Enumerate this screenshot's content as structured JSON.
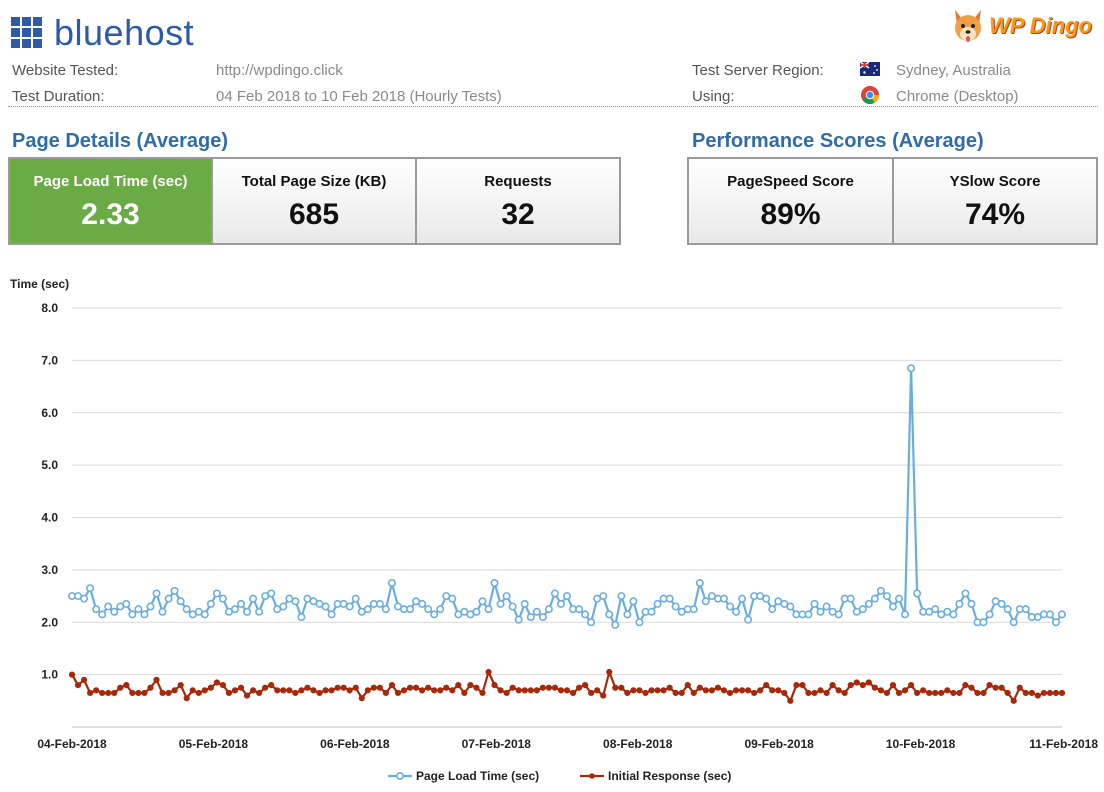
{
  "header": {
    "brand": "bluehost",
    "partner_logo_text": "WP Dingo",
    "website_label": "Website Tested:",
    "website_value": "http://wpdingo.click",
    "duration_label": "Test Duration:",
    "duration_value": "04 Feb 2018 to 10 Feb 2018 (Hourly Tests)",
    "region_label": "Test Server Region:",
    "region_value": "Sydney, Australia",
    "using_label": "Using:",
    "using_value": "Chrome (Desktop)"
  },
  "page_details": {
    "title": "Page Details (Average)",
    "cards": [
      {
        "label": "Page Load Time (sec)",
        "value": "2.33"
      },
      {
        "label": "Total Page Size (KB)",
        "value": "685"
      },
      {
        "label": "Requests",
        "value": "32"
      }
    ]
  },
  "performance": {
    "title": "Performance Scores (Average)",
    "cards": [
      {
        "label": "PageSpeed Score",
        "value": "89%"
      },
      {
        "label": "YSlow Score",
        "value": "74%"
      }
    ]
  },
  "colors": {
    "brand_blue": "#2f5aa8",
    "title_blue": "#2f6ca8",
    "green": "#6aab46",
    "series_load": "#6aaee0",
    "series_response": "#a8280a"
  },
  "chart_data": {
    "type": "line",
    "ylabel": "Time (sec)",
    "ylim": [
      0,
      8
    ],
    "yticks": [
      "8.0",
      "7.0",
      "6.0",
      "5.0",
      "4.0",
      "3.0",
      "2.0",
      "1.0"
    ],
    "xlim": [
      "04-Feb-2018",
      "11-Feb-2018"
    ],
    "xticks": [
      "04-Feb-2018",
      "05-Feb-2018",
      "06-Feb-2018",
      "07-Feb-2018",
      "08-Feb-2018",
      "09-Feb-2018",
      "10-Feb-2018",
      "11-Feb-2018"
    ],
    "grid": "horizontal",
    "legend": "bottom",
    "series": [
      {
        "name": "Page Load Time (sec)",
        "values": [
          2.5,
          2.5,
          2.45,
          2.65,
          2.25,
          2.15,
          2.3,
          2.2,
          2.3,
          2.35,
          2.15,
          2.25,
          2.15,
          2.3,
          2.55,
          2.2,
          2.45,
          2.6,
          2.4,
          2.25,
          2.15,
          2.2,
          2.15,
          2.35,
          2.55,
          2.45,
          2.2,
          2.25,
          2.35,
          2.2,
          2.45,
          2.2,
          2.5,
          2.55,
          2.25,
          2.3,
          2.45,
          2.4,
          2.1,
          2.45,
          2.4,
          2.35,
          2.3,
          2.15,
          2.35,
          2.35,
          2.3,
          2.45,
          2.2,
          2.25,
          2.35,
          2.35,
          2.25,
          2.75,
          2.3,
          2.25,
          2.25,
          2.4,
          2.35,
          2.25,
          2.15,
          2.25,
          2.5,
          2.45,
          2.15,
          2.2,
          2.15,
          2.2,
          2.4,
          2.25,
          2.75,
          2.35,
          2.5,
          2.3,
          2.05,
          2.35,
          2.1,
          2.2,
          2.1,
          2.25,
          2.55,
          2.35,
          2.5,
          2.25,
          2.25,
          2.15,
          2.0,
          2.45,
          2.5,
          2.15,
          1.95,
          2.5,
          2.15,
          2.4,
          2.0,
          2.2,
          2.2,
          2.35,
          2.45,
          2.45,
          2.3,
          2.2,
          2.25,
          2.25,
          2.75,
          2.4,
          2.5,
          2.45,
          2.45,
          2.3,
          2.2,
          2.45,
          2.05,
          2.5,
          2.5,
          2.45,
          2.25,
          2.4,
          2.35,
          2.3,
          2.15,
          2.15,
          2.15,
          2.35,
          2.2,
          2.3,
          2.2,
          2.15,
          2.45,
          2.45,
          2.2,
          2.25,
          2.35,
          2.45,
          2.6,
          2.5,
          2.3,
          2.45,
          2.15,
          6.85,
          2.55,
          2.2,
          2.2,
          2.25,
          2.15,
          2.2,
          2.15,
          2.35,
          2.55,
          2.35,
          2.0,
          2.0,
          2.15,
          2.4,
          2.35,
          2.25,
          2.0,
          2.25,
          2.25,
          2.1,
          2.1,
          2.15,
          2.15,
          2.0,
          2.15
        ]
      },
      {
        "name": "Initial Response (sec)",
        "values": [
          1.0,
          0.8,
          0.9,
          0.65,
          0.7,
          0.65,
          0.65,
          0.65,
          0.75,
          0.8,
          0.65,
          0.65,
          0.65,
          0.75,
          0.9,
          0.65,
          0.65,
          0.7,
          0.8,
          0.55,
          0.7,
          0.65,
          0.7,
          0.75,
          0.85,
          0.8,
          0.65,
          0.7,
          0.75,
          0.6,
          0.7,
          0.65,
          0.75,
          0.8,
          0.7,
          0.7,
          0.7,
          0.65,
          0.7,
          0.75,
          0.7,
          0.65,
          0.7,
          0.7,
          0.75,
          0.75,
          0.7,
          0.75,
          0.55,
          0.7,
          0.75,
          0.75,
          0.65,
          0.8,
          0.65,
          0.7,
          0.75,
          0.75,
          0.7,
          0.75,
          0.7,
          0.7,
          0.75,
          0.7,
          0.8,
          0.65,
          0.8,
          0.75,
          0.65,
          1.05,
          0.8,
          0.7,
          0.65,
          0.75,
          0.7,
          0.7,
          0.7,
          0.7,
          0.75,
          0.75,
          0.75,
          0.7,
          0.7,
          0.65,
          0.75,
          0.8,
          0.65,
          0.7,
          0.6,
          1.05,
          0.75,
          0.75,
          0.65,
          0.7,
          0.7,
          0.65,
          0.7,
          0.7,
          0.7,
          0.75,
          0.65,
          0.65,
          0.8,
          0.65,
          0.75,
          0.7,
          0.7,
          0.75,
          0.7,
          0.65,
          0.7,
          0.7,
          0.7,
          0.65,
          0.7,
          0.8,
          0.7,
          0.7,
          0.65,
          0.5,
          0.8,
          0.8,
          0.65,
          0.65,
          0.7,
          0.65,
          0.8,
          0.7,
          0.65,
          0.8,
          0.85,
          0.8,
          0.85,
          0.75,
          0.7,
          0.65,
          0.8,
          0.65,
          0.7,
          0.8,
          0.65,
          0.7,
          0.65,
          0.65,
          0.65,
          0.7,
          0.65,
          0.65,
          0.8,
          0.75,
          0.65,
          0.65,
          0.8,
          0.75,
          0.75,
          0.65,
          0.5,
          0.75,
          0.65,
          0.65,
          0.6,
          0.65,
          0.65,
          0.65,
          0.65
        ]
      }
    ]
  }
}
